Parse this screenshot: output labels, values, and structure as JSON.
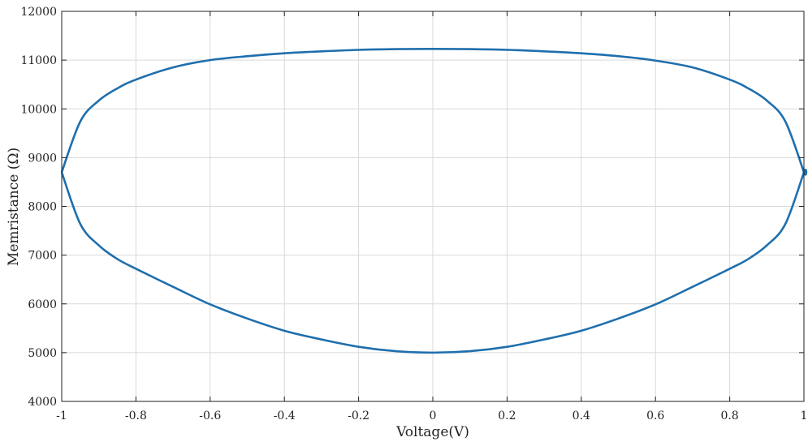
{
  "chart_data": {
    "type": "line",
    "xlabel": "Voltage(V)",
    "ylabel": "Memristance (Ω)",
    "xlim": [
      -1,
      1
    ],
    "ylim": [
      4000,
      12000
    ],
    "x_ticks": [
      -1,
      -0.8,
      -0.6,
      -0.4,
      -0.2,
      0,
      0.2,
      0.4,
      0.6,
      0.8,
      1
    ],
    "y_ticks": [
      4000,
      5000,
      6000,
      7000,
      8000,
      9000,
      10000,
      11000,
      12000
    ],
    "x_tick_labels": [
      "-1",
      "-0.8",
      "-0.6",
      "-0.4",
      "-0.2",
      "0",
      "0.2",
      "0.4",
      "0.6",
      "0.8",
      "1"
    ],
    "y_tick_labels": [
      "4000",
      "5000",
      "6000",
      "7000",
      "8000",
      "9000",
      "10000",
      "11000",
      "12000"
    ],
    "grid": true,
    "colors": {
      "series": "#1f6fad",
      "grid": "#d9d9d9",
      "axis": "#222222"
    },
    "series": [
      {
        "x": [
          -1.0,
          -0.95,
          -0.9,
          -0.85,
          -0.8,
          -0.7,
          -0.6,
          -0.5,
          -0.4,
          -0.3,
          -0.2,
          -0.1,
          0.0,
          0.1,
          0.2,
          0.3,
          0.4,
          0.5,
          0.6,
          0.7,
          0.8,
          0.85,
          0.9,
          0.95,
          1.0,
          1.0,
          0.95,
          0.9,
          0.85,
          0.8,
          0.7,
          0.6,
          0.5,
          0.4,
          0.3,
          0.2,
          0.1,
          0.0,
          -0.1,
          -0.2,
          -0.3,
          -0.4,
          -0.5,
          -0.6,
          -0.7,
          -0.8,
          -0.85,
          -0.9,
          -0.95,
          -1.0
        ],
        "y": [
          8700,
          9740,
          10170,
          10420,
          10600,
          10850,
          11000,
          11080,
          11140,
          11180,
          11210,
          11225,
          11230,
          11225,
          11210,
          11180,
          11140,
          11080,
          10990,
          10850,
          10600,
          10420,
          10170,
          9740,
          8700,
          8700,
          7640,
          7200,
          6920,
          6720,
          6350,
          5990,
          5700,
          5450,
          5270,
          5120,
          5030,
          5000,
          5030,
          5120,
          5270,
          5450,
          5700,
          5990,
          6350,
          6720,
          6920,
          7200,
          7640,
          8700
        ]
      }
    ]
  }
}
